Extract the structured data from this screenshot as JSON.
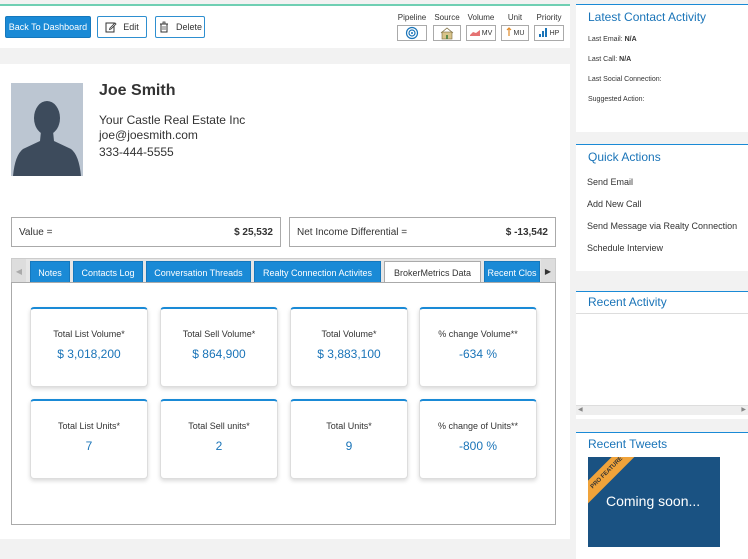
{
  "toolbar": {
    "back_label": "Back To Dashboard",
    "edit_label": "Edit",
    "delete_label": "Delete"
  },
  "meta": {
    "pipeline_label": "Pipeline",
    "source_label": "Source",
    "volume_label": "Volume",
    "volume_value": "MV",
    "unit_label": "Unit",
    "unit_value": "MU",
    "priority_label": "Priority",
    "priority_value": "HP"
  },
  "contact": {
    "name": "Joe Smith",
    "company": "Your Castle Real Estate Inc",
    "email": "joe@joesmith.com",
    "phone": "333-444-5555"
  },
  "summary": {
    "value_label": "Value =",
    "value_amount": "$ 25,532",
    "net_label": "Net Income Differential =",
    "net_amount": "$ -13,542"
  },
  "tabs": [
    {
      "label": "Notes"
    },
    {
      "label": "Contacts Log"
    },
    {
      "label": "Conversation Threads"
    },
    {
      "label": "Realty Connection Activites"
    },
    {
      "label": "BrokerMetrics Data"
    },
    {
      "label": "Recent Clos"
    }
  ],
  "metrics": [
    {
      "label": "Total List Volume*",
      "value": "$ 3,018,200"
    },
    {
      "label": "Total Sell Volume*",
      "value": "$ 864,900"
    },
    {
      "label": "Total Volume*",
      "value": "$ 3,883,100"
    },
    {
      "label": "% change Volume**",
      "value": "-634 %"
    },
    {
      "label": "Total List Units*",
      "value": "7"
    },
    {
      "label": "Total Sell units*",
      "value": "2"
    },
    {
      "label": "Total Units*",
      "value": "9"
    },
    {
      "label": "% change of Units**",
      "value": "-800 %"
    }
  ],
  "sidebar": {
    "latest_title": "Latest Contact Activity",
    "last_email_label": "Last Email:",
    "last_email_value": "N/A",
    "last_call_label": "Last Call:",
    "last_call_value": "N/A",
    "last_social_label": "Last Social Connection:",
    "suggested_label": "Suggested Action:",
    "quick_title": "Quick Actions",
    "quick_actions": [
      "Send Email",
      "Add New Call",
      "Send Message via Realty Connection",
      "Schedule Interview"
    ],
    "recent_title": "Recent Activity",
    "tweets_title": "Recent Tweets",
    "pro_badge": "PRO FEATURE",
    "coming_soon": "Coming soon..."
  },
  "colors": {
    "accent": "#1a8ad6",
    "title_blue": "#1a74b8",
    "teal_strip": "#6fcfb3",
    "promo_bg": "#1a5282",
    "promo_band": "#f0a33a"
  }
}
